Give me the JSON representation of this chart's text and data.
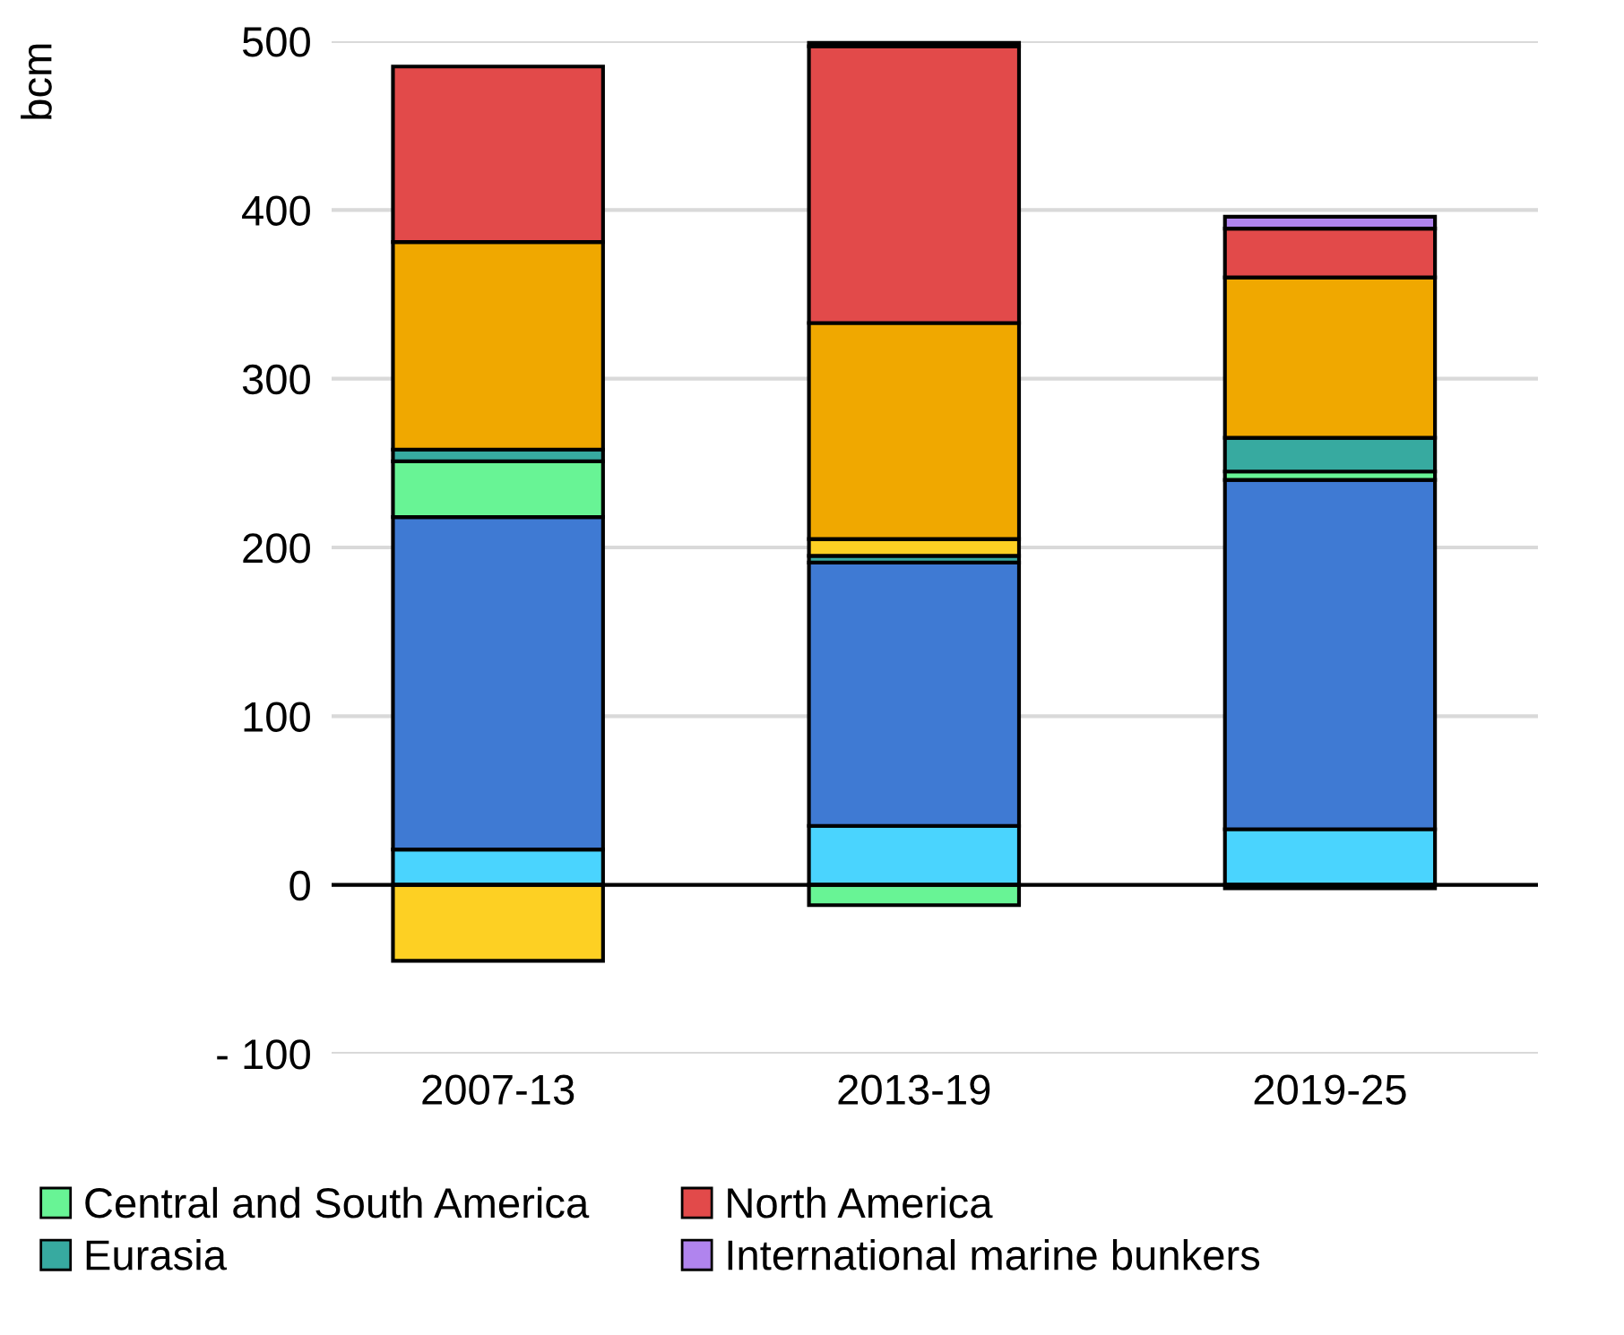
{
  "chart_data": {
    "type": "bar",
    "stacked": true,
    "ylabel": "bcm",
    "categories": [
      "2007-13",
      "2013-19",
      "2019-25"
    ],
    "series": [
      {
        "color": "#4ad4fe",
        "values": [
          21,
          35,
          33
        ]
      },
      {
        "color": "#3f7ad3",
        "values": [
          197,
          156,
          207
        ]
      },
      {
        "name": "Central and South America",
        "color": "#68f495",
        "values": [
          33,
          -12,
          5
        ]
      },
      {
        "name": "Eurasia",
        "color": "#37aaa0",
        "values": [
          7,
          4,
          20
        ]
      },
      {
        "color": "#fdd023",
        "values": [
          -45,
          10,
          -2
        ]
      },
      {
        "color": "#f0a800",
        "values": [
          123,
          128,
          95
        ]
      },
      {
        "name": "North America",
        "color": "#e24a4a",
        "values": [
          104,
          164,
          29
        ]
      },
      {
        "name": "International marine bunkers",
        "color": "#b084ee",
        "values": [
          null,
          2,
          7
        ]
      }
    ],
    "ylim": [
      -100,
      500
    ],
    "yticks": [
      {
        "value": -100,
        "label": "- 100"
      },
      0,
      100,
      200,
      300,
      400,
      500
    ],
    "ref_lines": [
      {
        "axis": "y",
        "value": 0,
        "color": "#000000"
      }
    ],
    "grid": "y",
    "legend": "bottom",
    "tick_labels": true
  }
}
